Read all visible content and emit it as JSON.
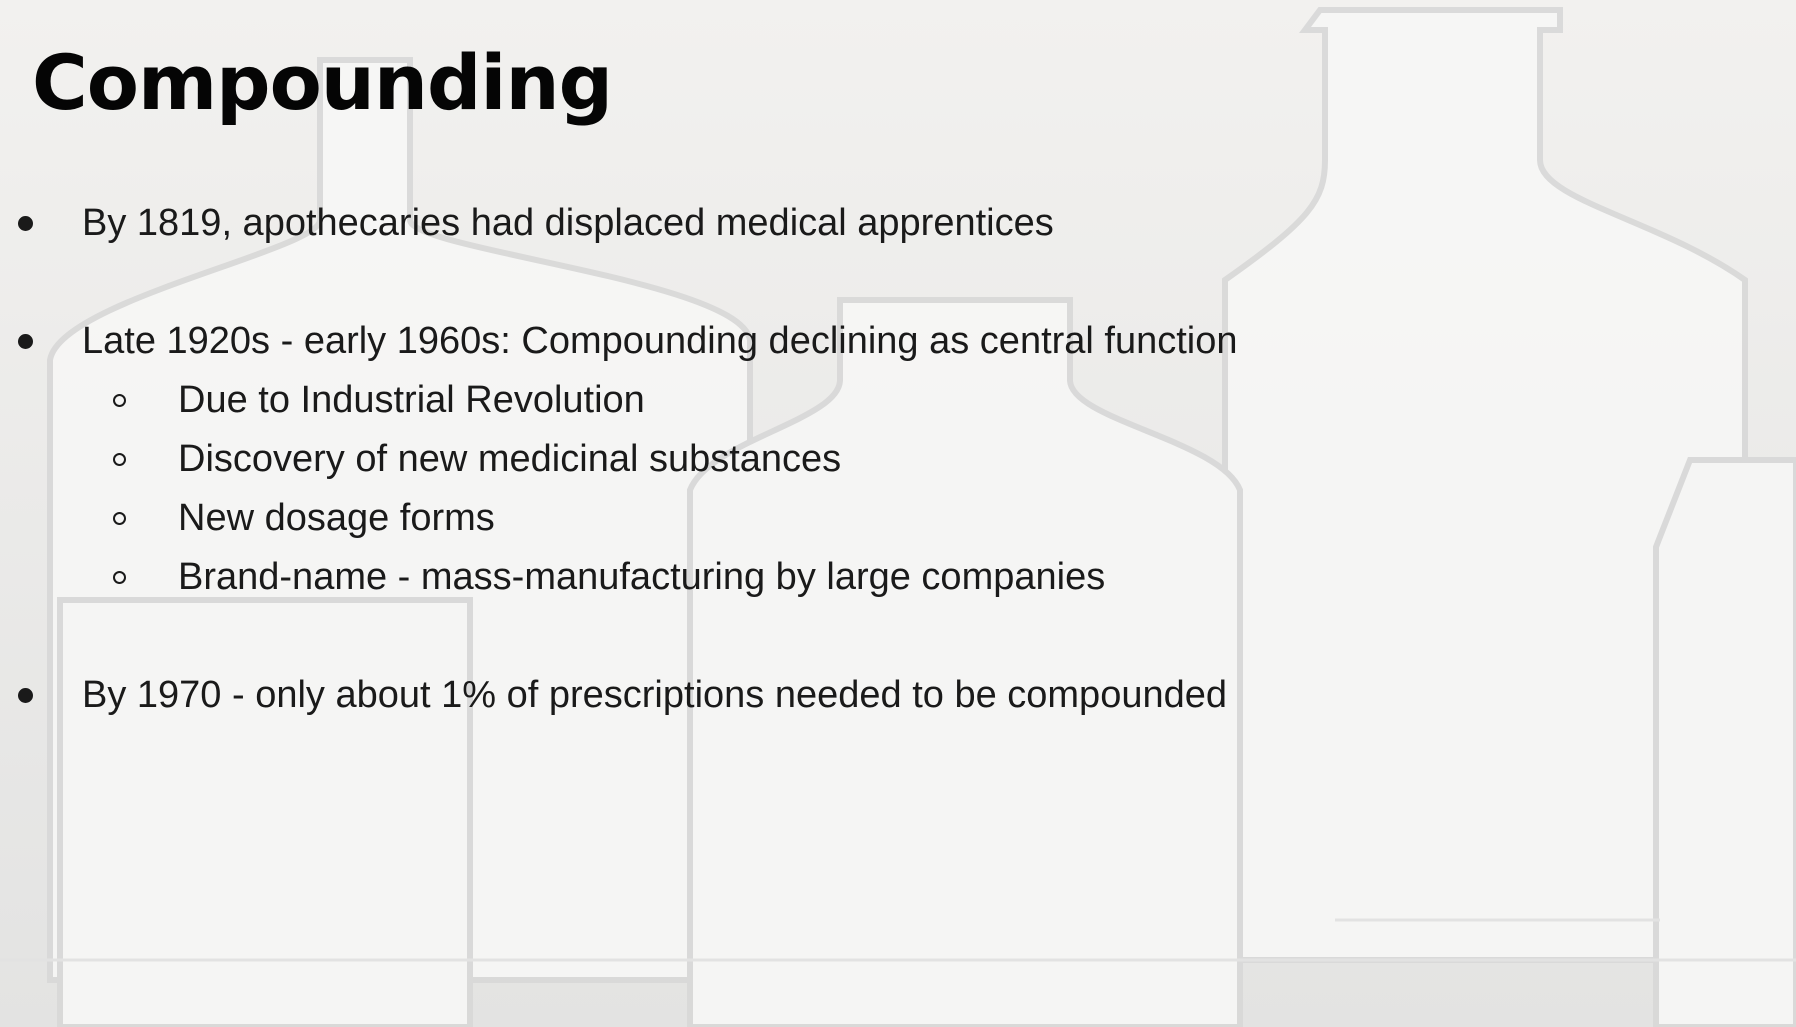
{
  "title": "Compounding",
  "bullets": [
    {
      "text": "By 1819, apothecaries had displaced medical apprentices"
    },
    {
      "text": "Late 1920s - early 1960s: Compounding declining as central function",
      "subitems": [
        "Due to Industrial Revolution",
        "Discovery of new medicinal substances",
        "New dosage forms",
        "Brand-name - mass-manufacturing by large companies"
      ]
    },
    {
      "text": "By 1970 - only about 1% of prescriptions needed to be compounded"
    }
  ]
}
